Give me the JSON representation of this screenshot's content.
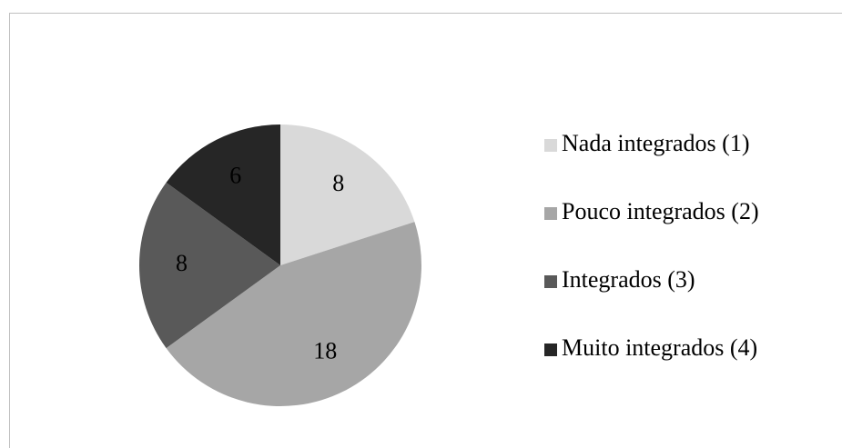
{
  "chart_data": {
    "type": "pie",
    "categories": [
      "Nada integrados (1)",
      "Pouco integrados (2)",
      "Integrados (3)",
      "Muito integrados (4)"
    ],
    "values": [
      8,
      18,
      8,
      6
    ],
    "colors": [
      "#d9d9d9",
      "#a6a6a6",
      "#595959",
      "#262626"
    ],
    "legend": "right"
  }
}
